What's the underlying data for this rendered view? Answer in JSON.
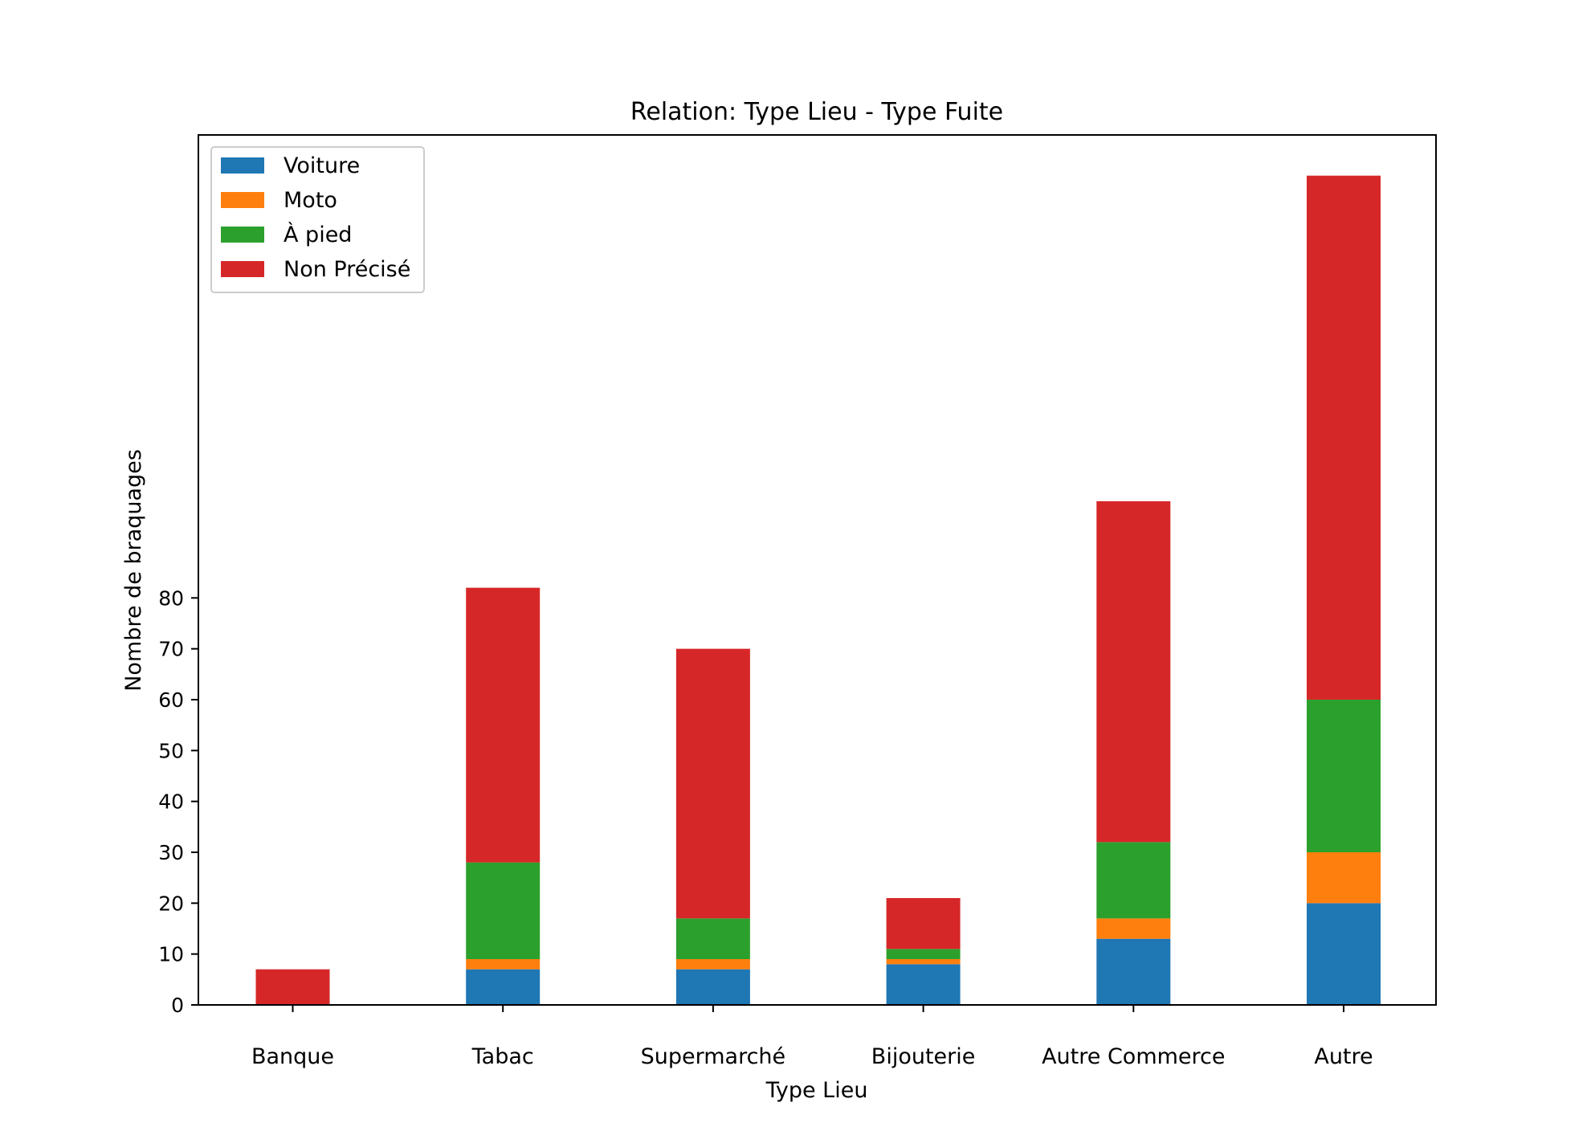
{
  "chart_data": {
    "type": "bar",
    "stacked": true,
    "title": "Relation: Type Lieu - Type Fuite",
    "xlabel": "Type Lieu",
    "ylabel": "Nombre de braquages",
    "categories": [
      "Banque",
      "Tabac",
      "Supermarché",
      "Bijouterie",
      "Autre Commerce",
      "Autre"
    ],
    "series": [
      {
        "name": "Voiture",
        "color": "#1f77b4",
        "values": [
          0,
          7,
          7,
          8,
          13,
          20
        ]
      },
      {
        "name": "Moto",
        "color": "#ff7f0e",
        "values": [
          0,
          2,
          2,
          1,
          4,
          10
        ]
      },
      {
        "name": "À pied",
        "color": "#2ca02c",
        "values": [
          0,
          19,
          8,
          2,
          15,
          30
        ]
      },
      {
        "name": "Non Précisé",
        "color": "#d62728",
        "values": [
          7,
          54,
          53,
          10,
          67,
          103
        ]
      }
    ],
    "yticks": [
      0,
      10,
      20,
      30,
      40,
      50,
      60,
      70,
      80
    ],
    "ylim": [
      0,
      171
    ],
    "grid": false,
    "legend_position": "top-left"
  }
}
